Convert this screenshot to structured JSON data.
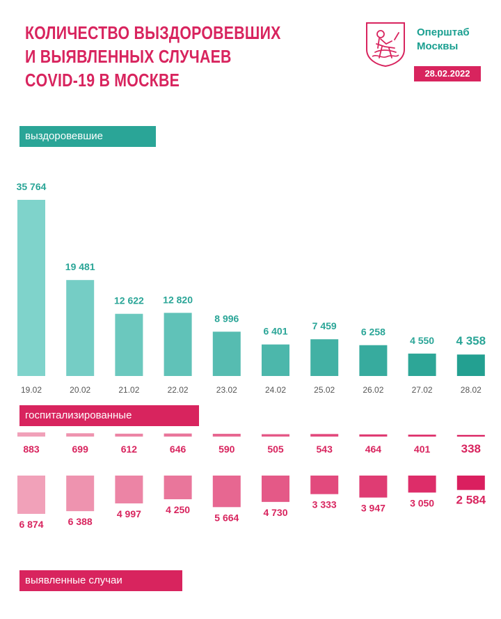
{
  "header": {
    "title_lines": [
      "КОЛИЧЕСТВО ВЫЗДОРОВЕВШИХ",
      "И ВЫЯВЛЕННЫХ СЛУЧАЕВ",
      "COVID-19 В МОСКВЕ"
    ],
    "org_lines": [
      "Оперштаб",
      "Москвы"
    ],
    "date": "28.02.2022",
    "logo_icon": "moscow-coat-of-arms-icon"
  },
  "labels": {
    "recovered": "выздоровевшие",
    "hospitalized": "госпитализированные",
    "detected": "выявленные случаи"
  },
  "colors": {
    "accent_pink": "#d8245e",
    "accent_teal": "#2aa597",
    "teal_light": "#7fd3cb",
    "teal_dark": "#23a091",
    "pink_light": "#f1a1b9",
    "pink_dark": "#da1f5f",
    "text_gray": "#555555"
  },
  "chart_data": [
    {
      "type": "bar",
      "name": "выздоровевшие",
      "categories": [
        "19.02",
        "20.02",
        "21.02",
        "22.02",
        "23.02",
        "24.02",
        "25.02",
        "26.02",
        "27.02",
        "28.02"
      ],
      "values": [
        35764,
        19481,
        12622,
        12820,
        8996,
        6401,
        7459,
        6258,
        4550,
        4358
      ],
      "value_labels": [
        "35 764",
        "19 481",
        "12 622",
        "12 820",
        "8 996",
        "6 401",
        "7 459",
        "6 258",
        "4 550",
        "4 358"
      ]
    },
    {
      "type": "bar",
      "name": "госпитализированные",
      "categories": [
        "19.02",
        "20.02",
        "21.02",
        "22.02",
        "23.02",
        "24.02",
        "25.02",
        "26.02",
        "27.02",
        "28.02"
      ],
      "values": [
        883,
        699,
        612,
        646,
        590,
        505,
        543,
        464,
        401,
        338
      ],
      "value_labels": [
        "883",
        "699",
        "612",
        "646",
        "590",
        "505",
        "543",
        "464",
        "401",
        "338"
      ]
    },
    {
      "type": "bar",
      "name": "выявленные случаи",
      "categories": [
        "19.02",
        "20.02",
        "21.02",
        "22.02",
        "23.02",
        "24.02",
        "25.02",
        "26.02",
        "27.02",
        "28.02"
      ],
      "values": [
        6874,
        6388,
        4997,
        4250,
        5664,
        4730,
        3333,
        3947,
        3050,
        2584
      ],
      "value_labels": [
        "6 874",
        "6 388",
        "4 997",
        "4 250",
        "5 664",
        "4 730",
        "3 333",
        "3 947",
        "3 050",
        "2 584"
      ]
    }
  ]
}
